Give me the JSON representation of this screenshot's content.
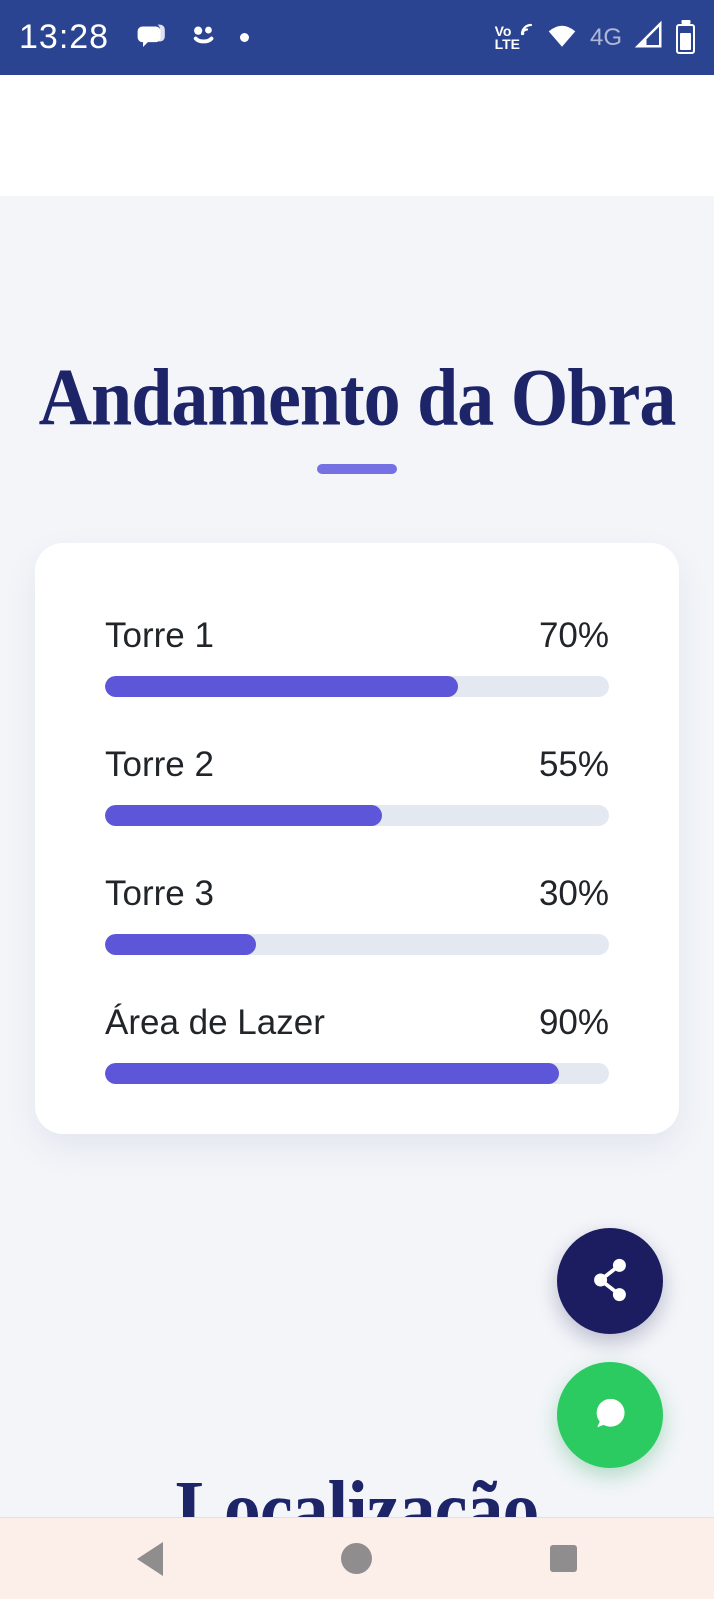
{
  "colors": {
    "status_bar_bg": "#2b4492",
    "page_bg": "#f3f5f9",
    "hero_bg": "#ffffff",
    "title_navy": "#1d2468",
    "accent_underline": "#7571e3",
    "bar_fill": "#5d56d8",
    "bar_track": "#e4e9f1",
    "card_bg": "#ffffff",
    "label_text": "#212529",
    "fab_share_bg": "#1c1c60",
    "fab_chat_bg": "#2bcb62",
    "nav_bar_bg": "#fceee9",
    "nav_icon": "#8f8d8d"
  },
  "status_bar": {
    "time": "13:28",
    "left_icons": [
      "messages-icon",
      "swirl-icon",
      "dot-icon"
    ],
    "volte_top": "Vo",
    "volte_bottom": "LTE",
    "network_badge": "4G"
  },
  "progress_section": {
    "title": "Andamento da Obra",
    "items": [
      {
        "label": "Torre 1",
        "percent": 70,
        "percent_label": "70%"
      },
      {
        "label": "Torre 2",
        "percent": 55,
        "percent_label": "55%"
      },
      {
        "label": "Torre 3",
        "percent": 30,
        "percent_label": "30%"
      },
      {
        "label": "Área de Lazer",
        "percent": 90,
        "percent_label": "90%"
      }
    ]
  },
  "location_section": {
    "title": "Localização"
  },
  "fabs": {
    "share": {
      "icon": "share-icon"
    },
    "chat": {
      "icon": "chat-bubble-icon"
    }
  },
  "nav_bar": {
    "icons": [
      "back-icon",
      "home-icon",
      "recents-icon"
    ]
  }
}
